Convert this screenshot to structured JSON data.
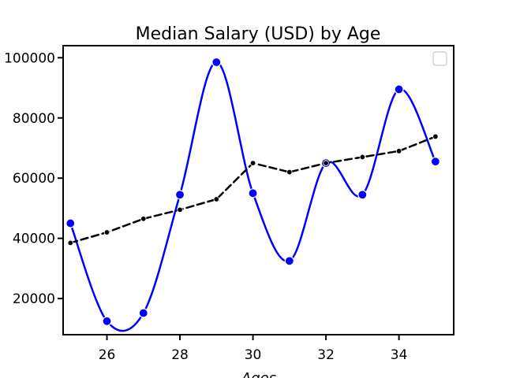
{
  "chart_data": {
    "type": "line",
    "title": "Median Salary (USD) by Age",
    "xlabel": "Ages",
    "ylabel": "",
    "xlim": [
      24.8,
      35.5
    ],
    "ylim": [
      8000,
      104000
    ],
    "x_ticks": [
      26,
      28,
      30,
      32,
      34
    ],
    "y_ticks": [
      20000,
      40000,
      60000,
      80000,
      100000
    ],
    "x": [
      25,
      26,
      27,
      28,
      29,
      30,
      31,
      32,
      33,
      34,
      35
    ],
    "series": [
      {
        "values": [
          45000,
          12500,
          15200,
          54500,
          98500,
          55000,
          32500,
          65000,
          54500,
          89500,
          65500
        ],
        "color": "#0000ff",
        "style": "solid",
        "marker": "circle-large"
      },
      {
        "values": [
          38500,
          42000,
          46500,
          49500,
          53000,
          65000,
          62000,
          65000,
          67000,
          69000,
          73800
        ],
        "color": "#000000",
        "style": "dashed",
        "marker": "circle-small"
      }
    ],
    "grid": false,
    "legend": "top-right (empty)"
  }
}
